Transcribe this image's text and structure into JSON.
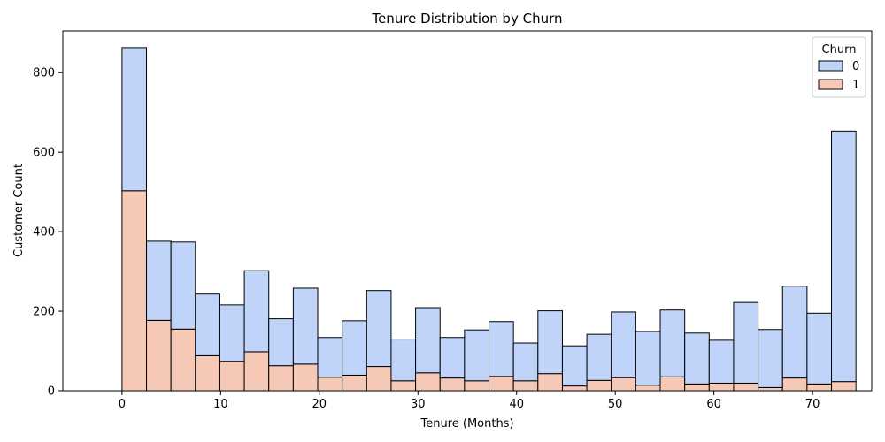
{
  "chart_data": {
    "type": "bar",
    "stacked": true,
    "title": "Tenure Distribution by Churn",
    "xlabel": "Tenure (Months)",
    "ylabel": "Customer Count",
    "xlim": [
      -6,
      76
    ],
    "ylim": [
      0,
      905
    ],
    "xticks": [
      0,
      10,
      20,
      30,
      40,
      50,
      60,
      70
    ],
    "yticks": [
      0,
      200,
      400,
      600,
      800
    ],
    "bin_start": 0,
    "bin_width": 2.48,
    "legend": {
      "title": "Churn",
      "position": "top-right"
    },
    "series": [
      {
        "name": "0",
        "color": "#c0d4fa",
        "values": [
          360,
          199,
          219,
          155,
          142,
          204,
          118,
          191,
          100,
          137,
          191,
          105,
          164,
          102,
          128,
          138,
          95,
          158,
          101,
          116,
          165,
          135,
          168,
          128,
          108,
          203,
          146,
          231,
          178,
          630
        ]
      },
      {
        "name": "1",
        "color": "#f6c9b6",
        "values": [
          503,
          177,
          155,
          88,
          74,
          98,
          63,
          67,
          34,
          39,
          61,
          25,
          45,
          32,
          25,
          36,
          25,
          43,
          12,
          26,
          33,
          14,
          35,
          17,
          19,
          19,
          8,
          32,
          17,
          23
        ]
      }
    ]
  }
}
